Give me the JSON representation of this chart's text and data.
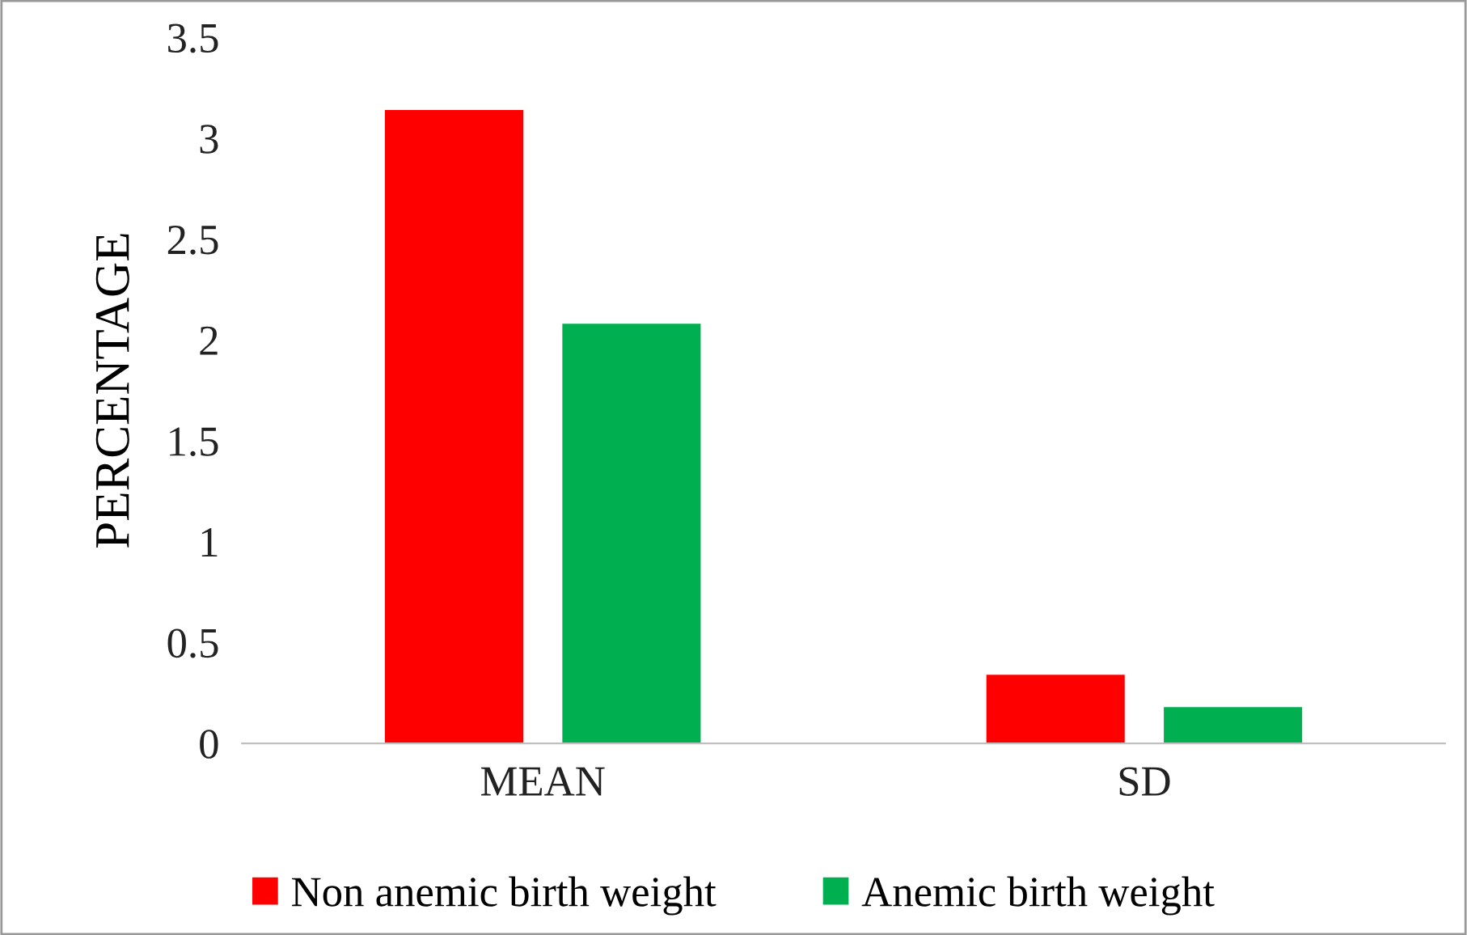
{
  "chart_data": {
    "type": "bar",
    "ylabel": "PERCENTAGE",
    "categories": [
      "MEAN",
      "SD"
    ],
    "series": [
      {
        "name": "Non anemic birth weight",
        "color": "#ff0000",
        "values": [
          3.14,
          0.34
        ]
      },
      {
        "name": "Anemic birth weight",
        "color": "#00b050",
        "values": [
          2.08,
          0.18
        ]
      }
    ],
    "ylim": [
      0,
      3.5
    ],
    "yticks": [
      0,
      0.5,
      1,
      1.5,
      2,
      2.5,
      3,
      3.5
    ],
    "grid": false,
    "legend": "bottom"
  }
}
